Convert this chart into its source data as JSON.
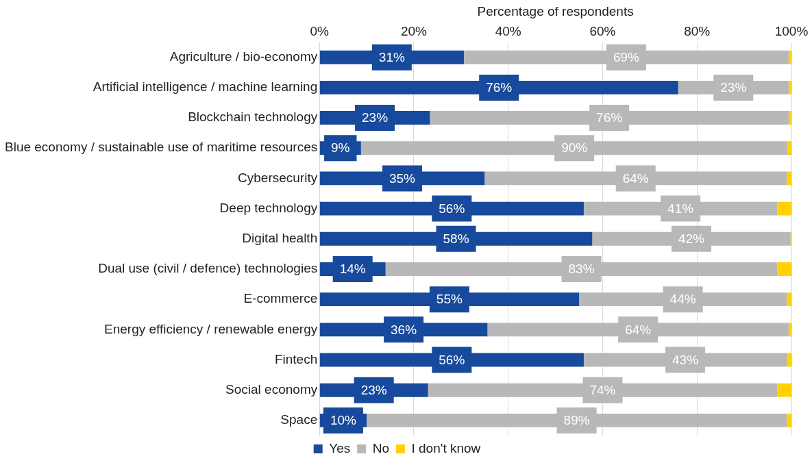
{
  "chart_data": {
    "type": "bar",
    "orientation": "horizontal",
    "stacked": true,
    "xlabel": "Percentage of respondents",
    "categories": [
      "Agriculture / bio-economy",
      "Artificial intelligence / machine learning",
      "Blockchain technology",
      "Blue economy / sustainable use of maritime resources",
      "Cybersecurity",
      "Deep technology",
      "Digital health",
      "Dual use (civil / defence) technologies",
      "E-commerce",
      "Energy efficiency / renewable energy",
      "Fintech",
      "Social economy",
      "Space"
    ],
    "series": [
      {
        "name": "Yes",
        "color": "#174a9c",
        "values": [
          30.6,
          76,
          23.4,
          8.8,
          35,
          56,
          57.8,
          14,
          55,
          35.6,
          56,
          23,
          10
        ],
        "value_labels": [
          "31%",
          "76%",
          "23%",
          "9%",
          "35%",
          "56%",
          "58%",
          "14%",
          "55%",
          "36%",
          "56%",
          "23%",
          "10%"
        ]
      },
      {
        "name": "No",
        "color": "#b8b8b8",
        "values": [
          68.8,
          23.4,
          76,
          90.4,
          64,
          41,
          42,
          83,
          44,
          63.8,
          43,
          74,
          89
        ],
        "value_labels": [
          "69%",
          "23%",
          "76%",
          "90%",
          "64%",
          "41%",
          "42%",
          "83%",
          "44%",
          "64%",
          "43%",
          "74%",
          "89%"
        ]
      },
      {
        "name": "I don't know",
        "color": "#ffd200",
        "values": [
          0.6,
          0.6,
          0.6,
          0.8,
          1,
          3,
          0.2,
          3,
          1,
          0.6,
          1,
          3,
          1
        ]
      }
    ],
    "xlim": [
      0,
      100
    ],
    "xticks": [
      {
        "value": 0,
        "label": "0%"
      },
      {
        "value": 20,
        "label": "20%"
      },
      {
        "value": 40,
        "label": "40%"
      },
      {
        "value": 60,
        "label": "60%"
      },
      {
        "value": 80,
        "label": "80%"
      },
      {
        "value": 100,
        "label": "100%"
      }
    ],
    "grid": "x",
    "legend": "bottom"
  }
}
